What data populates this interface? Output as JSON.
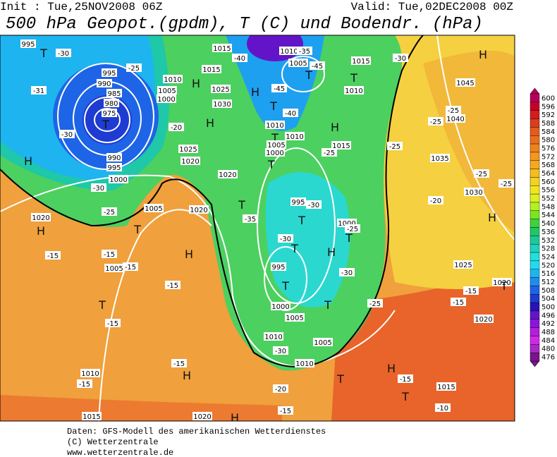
{
  "header": {
    "init": "Init : Tue,25NOV2008 06Z",
    "valid": "Valid: Tue,02DEC2008 00Z",
    "title": "500 hPa Geopot.(gpdm), T (C) und Bodendr. (hPa)"
  },
  "map": {
    "labels": [
      "995",
      "T",
      "-30",
      "-25",
      "995",
      "990",
      "985",
      "980",
      "975",
      "T",
      "-30",
      "-31",
      "990",
      "995",
      "1000",
      "-30",
      "H",
      "1010",
      "1005",
      "1000",
      "H",
      "1025",
      "1030",
      "H",
      "-20",
      "1025",
      "1020",
      "1020",
      "1015",
      "1015",
      "-40",
      "1010",
      "-45",
      "H",
      "T",
      "-40",
      "1010",
      "T",
      "1010",
      "H",
      "1015",
      "-25",
      "1005",
      "1000",
      "T",
      "-35",
      "T",
      "995",
      "-30",
      "T",
      "1000",
      "-25",
      "T",
      "-30",
      "H",
      "T",
      "995",
      "T",
      "-30",
      "1000",
      "1005",
      "T",
      "1010",
      "-30",
      "1005",
      "-25",
      "1010",
      "1015",
      "T",
      "1010",
      "T",
      "1005",
      "-45",
      "-35",
      "-30",
      "H",
      "1045",
      "-25",
      "1040",
      "-25",
      "-25",
      "1035",
      "-25",
      "-25",
      "1030",
      "-20",
      "H",
      "1025",
      "-15",
      "1020",
      "-15",
      "1020",
      "T",
      "H",
      "-15",
      "T",
      "1015",
      "-10",
      "T",
      "-20",
      "-15",
      "H",
      "1020",
      "1015",
      "-15",
      "1010",
      "H",
      "-15",
      "T",
      "-15",
      "-15",
      "H",
      "-15",
      "1005",
      "-15",
      "-15",
      "H",
      "1020",
      "-25",
      "T",
      "1005",
      "1020"
    ]
  },
  "colorbar": {
    "ticks": [
      600,
      596,
      592,
      588,
      584,
      580,
      576,
      572,
      568,
      564,
      560,
      556,
      552,
      548,
      544,
      540,
      536,
      532,
      528,
      524,
      520,
      516,
      512,
      508,
      504,
      500,
      496,
      492,
      488,
      484,
      480,
      476
    ],
    "colors": [
      "#b4005a",
      "#c80028",
      "#d21e1e",
      "#dc3c1e",
      "#e65a1e",
      "#eb6e1e",
      "#f0821e",
      "#f5961e",
      "#f5aa1e",
      "#f5be1e",
      "#f5d21e",
      "#f0e61e",
      "#dcf01e",
      "#b4f01e",
      "#78e61e",
      "#3cd23c",
      "#1ec864",
      "#1ec896",
      "#1ed2be",
      "#1ee1dc",
      "#1edcf0",
      "#1eb4f0",
      "#1e8cf0",
      "#1e64e6",
      "#1e3cd2",
      "#2814b4",
      "#6414c8",
      "#8c14dc",
      "#b41edc",
      "#d228e6",
      "#aa28c8",
      "#78148c"
    ]
  },
  "footer": [
    "Daten: GFS-Modell des amerikanischen Wetterdienstes",
    "(C) Wetterzentrale",
    "www.wetterzentrale.de"
  ]
}
